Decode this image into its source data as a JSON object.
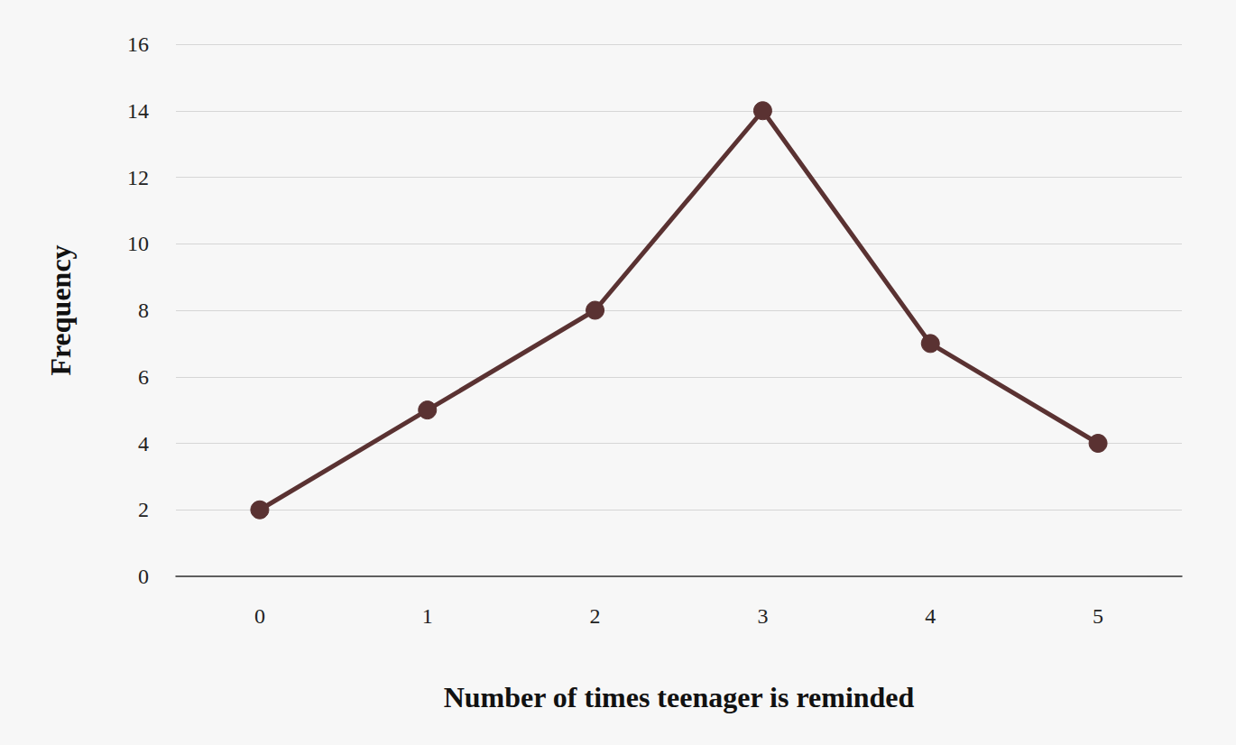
{
  "chart_data": {
    "type": "line",
    "xlabel": "Number of times teenager is reminded",
    "ylabel": "Frequency",
    "categories": [
      "0",
      "1",
      "2",
      "3",
      "4",
      "5"
    ],
    "values": [
      2,
      5,
      8,
      14,
      7,
      4
    ],
    "color": "#5a3232",
    "marker": "circle",
    "ylim": [
      0,
      16
    ],
    "yticks": [
      0,
      2,
      4,
      6,
      8,
      10,
      12,
      14,
      16
    ],
    "grid": true
  }
}
